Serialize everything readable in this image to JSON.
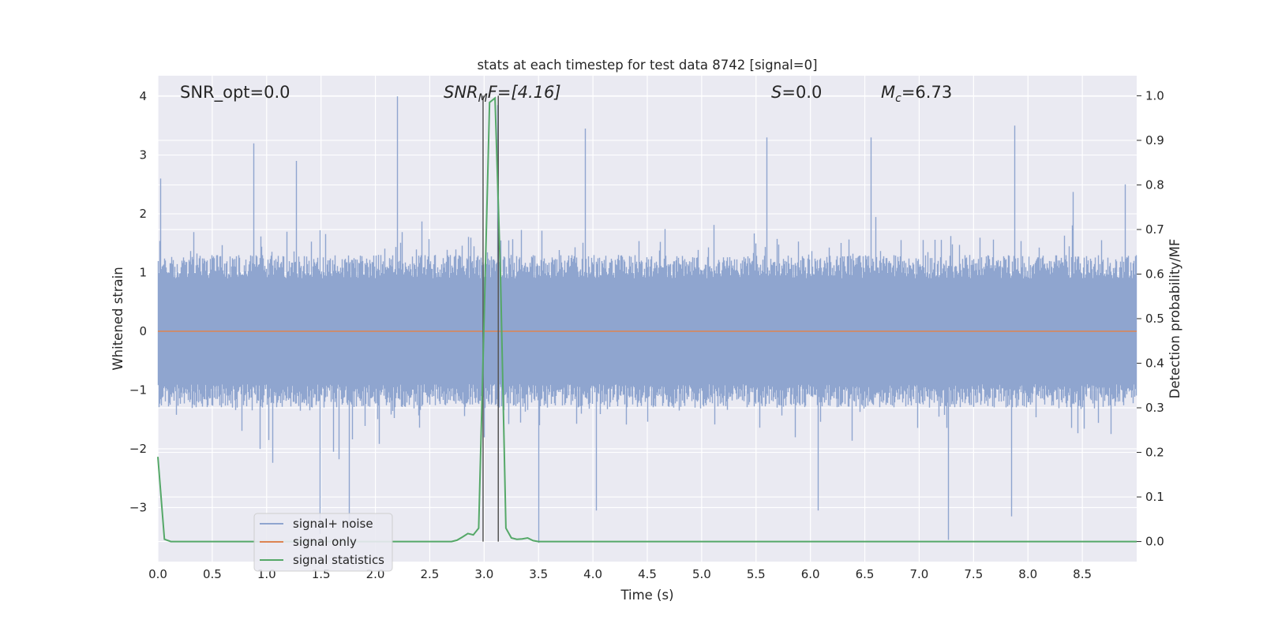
{
  "chart_data": {
    "type": "line",
    "title": "stats at each timestep for test data 8742 [signal=0]",
    "xlabel": "Time (s)",
    "ylabel_left": "Whitened strain",
    "ylabel_right": "Detection probability/MF",
    "xlim": [
      0.0,
      9.0
    ],
    "ylim_left": [
      -3.92,
      4.35
    ],
    "ylim_right": [
      -0.045,
      1.045
    ],
    "x_ticks": [
      "0.0",
      "0.5",
      "1.0",
      "1.5",
      "2.0",
      "2.5",
      "3.0",
      "3.5",
      "4.0",
      "4.5",
      "5.0",
      "5.5",
      "6.0",
      "6.5",
      "7.0",
      "7.5",
      "8.0",
      "8.5"
    ],
    "y_left_ticks": [
      "−3",
      "−2",
      "−1",
      "0",
      "1",
      "2",
      "3",
      "4"
    ],
    "y_right_ticks": [
      "0.0",
      "0.1",
      "0.2",
      "0.3",
      "0.4",
      "0.5",
      "0.6",
      "0.7",
      "0.8",
      "0.9",
      "1.0"
    ],
    "grid": true,
    "legend_position": "lower-left",
    "annotations": {
      "snr_opt": "SNR_opt=0.0",
      "snr_mf_main": "SNR",
      "snr_mf_sub": "M",
      "snr_mf_rest": "F=[4.16]",
      "s_main": "S",
      "s_rest": "=0.0",
      "mc_main": "M",
      "mc_sub": "c",
      "mc_rest": "=6.73"
    },
    "vertical_lines_x": [
      2.99,
      3.13
    ],
    "series": [
      {
        "name": "signal+ noise",
        "color": "#8fa5cf",
        "description_values": "dense whitened noise, mostly within about ±1.5 with spikes up to 4.0 (t≈2.2) and down to about -3.55 (t≈7.27)",
        "peaks": [
          [
            0.02,
            2.6
          ],
          [
            0.88,
            3.2
          ],
          [
            1.27,
            2.9
          ],
          [
            2.2,
            4.0
          ],
          [
            3.12,
            3.85
          ],
          [
            3.93,
            3.45
          ],
          [
            5.6,
            3.3
          ],
          [
            6.56,
            3.3
          ],
          [
            7.88,
            3.5
          ],
          [
            8.9,
            2.5
          ]
        ],
        "troughs": [
          [
            1.49,
            -3.45
          ],
          [
            1.76,
            -3.3
          ],
          [
            3.5,
            -3.6
          ],
          [
            7.27,
            -3.55
          ],
          [
            7.85,
            -3.15
          ],
          [
            4.03,
            -3.05
          ],
          [
            6.07,
            -3.05
          ]
        ]
      },
      {
        "name": "signal only",
        "color": "#dd8452",
        "x": [
          0.0,
          9.0
        ],
        "values": [
          0.0,
          0.0
        ]
      },
      {
        "name": "signal statistics",
        "color": "#55a868",
        "axis": "right",
        "x": [
          0.0,
          0.06,
          0.12,
          0.2,
          0.5,
          1.0,
          1.5,
          2.0,
          2.5,
          2.7,
          2.75,
          2.8,
          2.85,
          2.9,
          2.95,
          3.0,
          3.05,
          3.1,
          3.15,
          3.2,
          3.25,
          3.3,
          3.35,
          3.4,
          3.45,
          3.5,
          4.0,
          5.0,
          6.0,
          7.0,
          8.0,
          9.0
        ],
        "values": [
          0.19,
          0.005,
          0.0,
          0.0,
          0.0,
          0.0,
          0.0,
          0.0,
          0.0,
          0.0,
          0.003,
          0.01,
          0.018,
          0.015,
          0.03,
          0.5,
          0.985,
          0.995,
          0.6,
          0.03,
          0.008,
          0.005,
          0.006,
          0.008,
          0.002,
          0.0,
          0.0,
          0.0,
          0.0,
          0.0,
          0.0,
          0.0
        ]
      }
    ]
  },
  "legend": {
    "items": [
      {
        "label": "signal+ noise",
        "color": "#8fa5cf"
      },
      {
        "label": "signal only",
        "color": "#dd8452"
      },
      {
        "label": "signal statistics",
        "color": "#55a868"
      }
    ]
  },
  "colors": {
    "plot_bg": "#eaeaf2",
    "grid": "#ffffff",
    "text": "#262626",
    "vline": "#555555"
  }
}
